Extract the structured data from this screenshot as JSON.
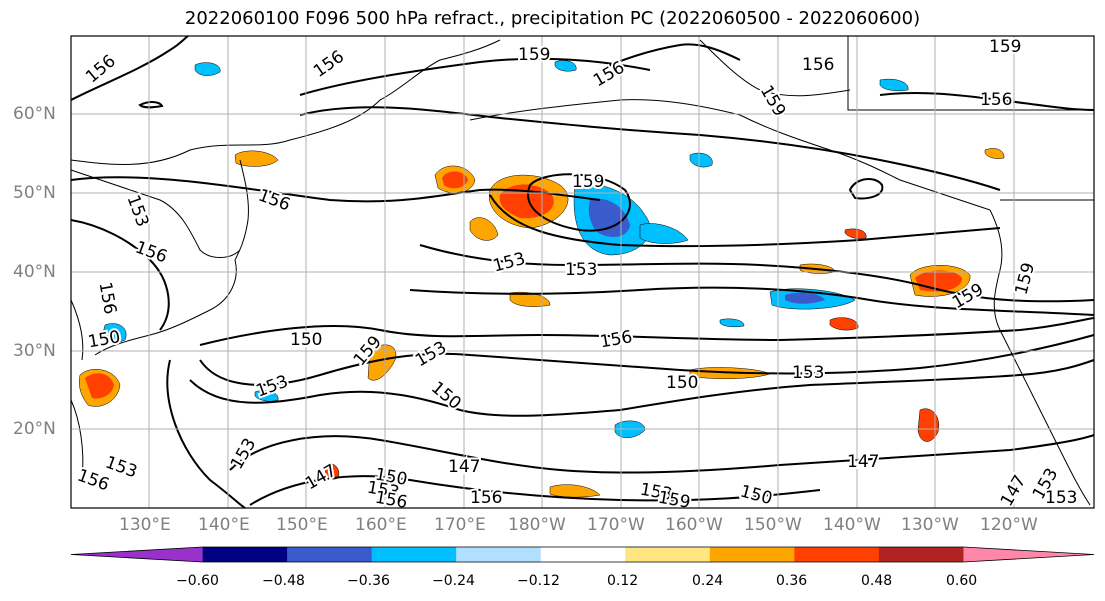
{
  "title": "2022060100 F096 500 hPa refract., precipitation PC (2022060500 - 2022060600)",
  "lat_labels": [
    "60°N",
    "50°N",
    "40°N",
    "30°N",
    "20°N"
  ],
  "lon_labels": [
    "130°E",
    "140°E",
    "150°E",
    "160°E",
    "170°E",
    "180°W",
    "170°W",
    "160°W",
    "150°W",
    "140°W",
    "130°W",
    "120°W"
  ],
  "contour_labels": [
    "156",
    "156",
    "159",
    "156",
    "159",
    "156",
    "156",
    "153",
    "156",
    "156",
    "159",
    "153",
    "153",
    "150",
    "153",
    "159",
    "153",
    "159",
    "156",
    "150",
    "153",
    "150",
    "156",
    "153",
    "147",
    "150",
    "153",
    "150",
    "156",
    "147",
    "147",
    "150",
    "153",
    "156",
    "153",
    "147",
    "159",
    "159",
    "159",
    "153",
    "156",
    "153"
  ],
  "colorbar": {
    "ticks": [
      "−0.60",
      "−0.48",
      "−0.36",
      "−0.24",
      "−0.12",
      "0.12",
      "0.24",
      "0.36",
      "0.48",
      "0.60"
    ],
    "colors": [
      "#9932cc",
      "#000080",
      "#3a5bcc",
      "#00bfff",
      "#b0e0ff",
      "#ffffff",
      "#ffe680",
      "#ffa500",
      "#ff4000",
      "#b22222",
      "#ff88aa"
    ]
  },
  "precip_colors": {
    "neg_light": "#b0e0ff",
    "neg_mid": "#00bfff",
    "neg_strong": "#3a5bcc",
    "pos_light": "#ffe680",
    "pos_mid": "#ffa500",
    "pos_strong": "#ff4000"
  }
}
